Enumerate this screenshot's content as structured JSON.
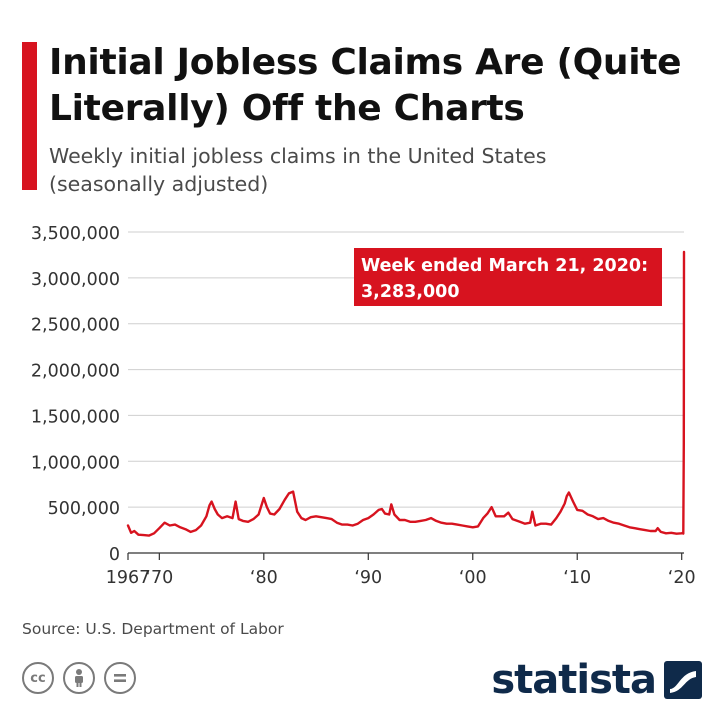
{
  "header": {
    "title": "Initial Jobless Claims Are (Quite Literally) Off the Charts",
    "subtitle": "Weekly initial jobless claims in the United States (seasonally adjusted)"
  },
  "footer": {
    "source": "Source: U.S. Department of Labor",
    "brand": "statista",
    "license_icons": [
      "cc-icon",
      "by-icon",
      "nd-icon"
    ]
  },
  "colors": {
    "accent": "#d7131f",
    "line": "#d7131f",
    "brand": "#0f2a4a",
    "grid": "#cfcfcf"
  },
  "chart_data": {
    "type": "line",
    "title": "Initial Jobless Claims Are (Quite Literally) Off the Charts",
    "subtitle": "Weekly initial jobless claims in the United States (seasonally adjusted)",
    "xlabel": "",
    "ylabel": "",
    "xlim": [
      1967,
      2020.22
    ],
    "ylim": [
      0,
      3500000
    ],
    "grid": true,
    "y_ticks": [
      0,
      500000,
      1000000,
      1500000,
      2000000,
      2500000,
      3000000,
      3500000
    ],
    "y_tick_labels": [
      "0",
      "500,000",
      "1,000,000",
      "1,500,000",
      "2,000,000",
      "2,500,000",
      "3,000,000",
      "3,500,000"
    ],
    "x_ticks": [
      1967,
      1970,
      1980,
      1990,
      2000,
      2010,
      2020
    ],
    "x_tick_labels": [
      "1967",
      "‘70",
      "‘80",
      "‘90",
      "‘00",
      "‘10",
      "‘20"
    ],
    "annotation": {
      "line1": "Week ended March 21, 2020:",
      "line2": "3,283,000",
      "x": 2020.22,
      "y": 3283000
    },
    "series": [
      {
        "x": [
          1967.0,
          1967.3,
          1967.6,
          1968.0,
          1968.5,
          1969.0,
          1969.5,
          1970.0,
          1970.5,
          1971.0,
          1971.5,
          1972.0,
          1972.5,
          1973.0,
          1973.5,
          1974.0,
          1974.5,
          1974.8,
          1975.0,
          1975.3,
          1975.6,
          1976.0,
          1976.5,
          1977.0,
          1977.3,
          1977.6,
          1978.0,
          1978.5,
          1979.0,
          1979.5,
          1980.0,
          1980.3,
          1980.6,
          1981.0,
          1981.5,
          1982.0,
          1982.4,
          1982.8,
          1983.2,
          1983.6,
          1984.0,
          1984.5,
          1985.0,
          1985.5,
          1986.0,
          1986.5,
          1987.0,
          1987.5,
          1988.0,
          1988.5,
          1989.0,
          1989.5,
          1990.0,
          1990.5,
          1991.0,
          1991.3,
          1991.6,
          1992.0,
          1992.2,
          1992.5,
          1993.0,
          1993.5,
          1994.0,
          1994.5,
          1995.0,
          1995.5,
          1996.0,
          1996.5,
          1997.0,
          1997.5,
          1998.0,
          1998.5,
          1999.0,
          1999.5,
          2000.0,
          2000.5,
          2001.0,
          2001.4,
          2001.8,
          2002.2,
          2002.6,
          2003.0,
          2003.4,
          2003.8,
          2004.5,
          2005.0,
          2005.5,
          2005.7,
          2006.0,
          2006.5,
          2007.0,
          2007.5,
          2008.0,
          2008.4,
          2008.8,
          2009.0,
          2009.2,
          2009.6,
          2010.0,
          2010.5,
          2011.0,
          2011.5,
          2012.0,
          2012.5,
          2013.0,
          2013.5,
          2014.0,
          2014.5,
          2015.0,
          2015.5,
          2016.0,
          2016.5,
          2017.0,
          2017.5,
          2017.7,
          2018.0,
          2018.5,
          2019.0,
          2019.5,
          2020.0,
          2020.1,
          2020.15,
          2020.2,
          2020.22
        ],
        "values": [
          300000,
          220000,
          240000,
          200000,
          195000,
          190000,
          215000,
          270000,
          330000,
          300000,
          310000,
          280000,
          260000,
          230000,
          250000,
          300000,
          400000,
          520000,
          560000,
          480000,
          420000,
          380000,
          400000,
          380000,
          560000,
          370000,
          350000,
          340000,
          370000,
          420000,
          600000,
          500000,
          430000,
          420000,
          480000,
          580000,
          650000,
          670000,
          450000,
          380000,
          360000,
          390000,
          400000,
          390000,
          380000,
          370000,
          330000,
          310000,
          310000,
          300000,
          320000,
          360000,
          380000,
          420000,
          470000,
          480000,
          430000,
          420000,
          530000,
          420000,
          360000,
          360000,
          340000,
          340000,
          350000,
          360000,
          380000,
          350000,
          330000,
          320000,
          320000,
          310000,
          300000,
          290000,
          280000,
          290000,
          380000,
          430000,
          500000,
          400000,
          400000,
          400000,
          440000,
          370000,
          340000,
          320000,
          330000,
          450000,
          300000,
          320000,
          320000,
          310000,
          380000,
          450000,
          540000,
          620000,
          660000,
          560000,
          470000,
          460000,
          420000,
          400000,
          370000,
          380000,
          350000,
          330000,
          320000,
          300000,
          280000,
          270000,
          260000,
          250000,
          240000,
          240000,
          270000,
          230000,
          215000,
          220000,
          210000,
          215000,
          220000,
          211000,
          1200000,
          3283000
        ]
      }
    ]
  }
}
